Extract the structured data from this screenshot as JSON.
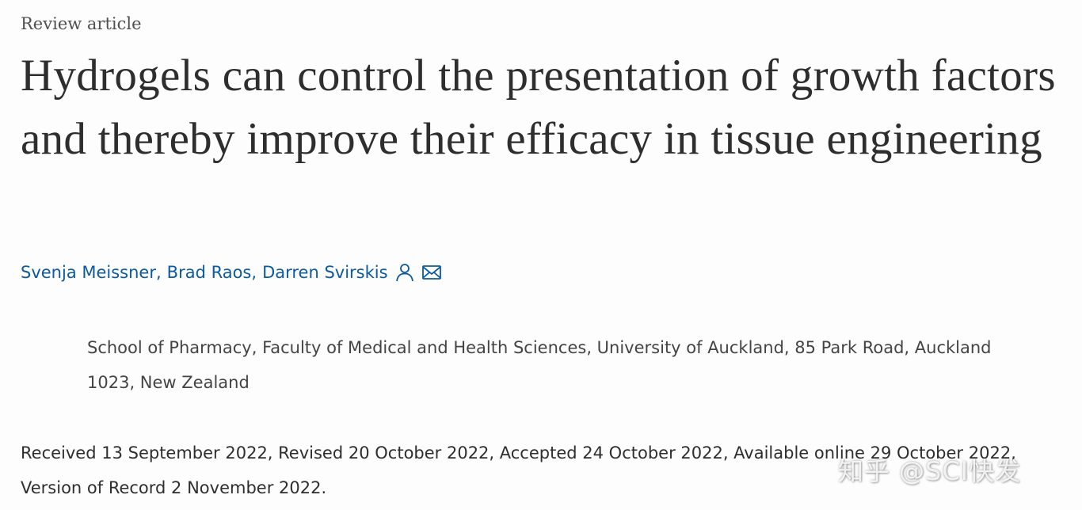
{
  "article": {
    "type": "Review article",
    "title": "Hydrogels can control the presentation of growth factors and thereby improve their efficacy in tissue engineering",
    "authors": [
      {
        "name": "Svenja Meissner",
        "sep": ","
      },
      {
        "name": "Brad Raos",
        "sep": ","
      },
      {
        "name": "Darren Svirskis",
        "sep": ""
      }
    ],
    "icons": {
      "person": "person-icon",
      "email": "envelope-icon"
    },
    "affiliation": "School of Pharmacy, Faculty of Medical and Health Sciences, University of Auckland, 85 Park Road, Auckland 1023, New Zealand",
    "history": "Received 13 September 2022, Revised 20 October 2022, Accepted 24 October 2022, Available online 29 October 2022, Version of Record 2 November 2022."
  },
  "watermark": {
    "text": "知乎 @SCI快发"
  },
  "colors": {
    "link": "#0c5aa0",
    "text": "#2e2e2e",
    "background": "#fdfdfd"
  }
}
